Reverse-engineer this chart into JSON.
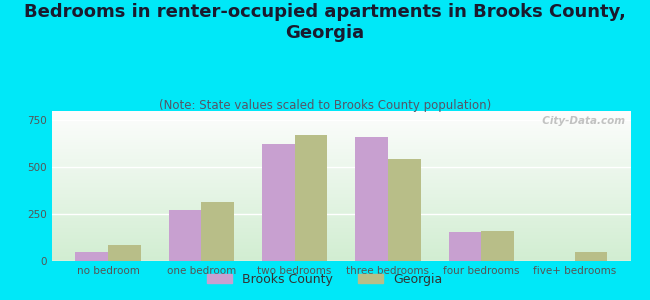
{
  "title": "Bedrooms in renter-occupied apartments in Brooks County,\nGeorgia",
  "subtitle": "(Note: State values scaled to Brooks County population)",
  "categories": [
    "no bedroom",
    "one bedroom",
    "two bedrooms",
    "three bedrooms",
    "four bedrooms",
    "five+ bedrooms"
  ],
  "brooks_county": [
    50,
    270,
    625,
    660,
    155,
    0
  ],
  "georgia": [
    85,
    315,
    670,
    545,
    160,
    50
  ],
  "brooks_color": "#c8a0d0",
  "georgia_color": "#b8be88",
  "background_outer": "#00e8f8",
  "ylim": [
    0,
    800
  ],
  "yticks": [
    0,
    250,
    500,
    750
  ],
  "bar_width": 0.35,
  "title_fontsize": 13,
  "subtitle_fontsize": 8.5,
  "tick_fontsize": 7.5,
  "legend_fontsize": 9,
  "watermark": "  City-Data.com"
}
